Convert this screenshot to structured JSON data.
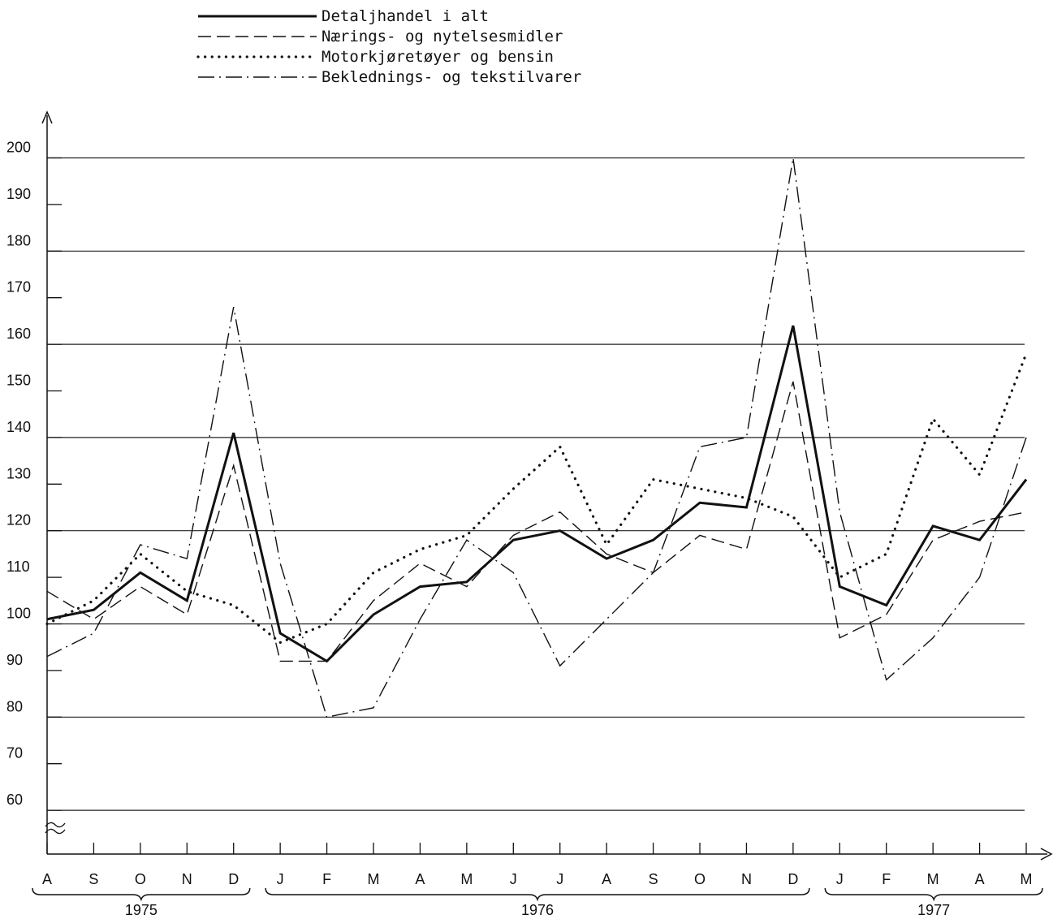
{
  "chart_data": {
    "type": "line",
    "title": "",
    "xlabel": "",
    "ylabel": "",
    "x": [
      "A",
      "S",
      "O",
      "N",
      "D",
      "J",
      "F",
      "M",
      "A",
      "M",
      "J",
      "J",
      "A",
      "S",
      "O",
      "N",
      "D",
      "J",
      "F",
      "M",
      "A",
      "M"
    ],
    "years": [
      {
        "label": "1975",
        "from": 0,
        "to": 4
      },
      {
        "label": "1976",
        "from": 5,
        "to": 16
      },
      {
        "label": "1977",
        "from": 17,
        "to": 21
      }
    ],
    "yticks": [
      60,
      70,
      80,
      90,
      100,
      110,
      120,
      130,
      140,
      150,
      160,
      170,
      180,
      190,
      200
    ],
    "gridlines": [
      60,
      80,
      100,
      120,
      140,
      160,
      180,
      200
    ],
    "ylim": [
      53,
      212
    ],
    "grid": true,
    "legend_position": "top",
    "series": [
      {
        "name": "Detaljhandel i alt",
        "style": "solid",
        "values": [
          101,
          103,
          111,
          105,
          141,
          98,
          92,
          102,
          108,
          109,
          118,
          120,
          114,
          118,
          126,
          125,
          164,
          108,
          104,
          121,
          118,
          131
        ]
      },
      {
        "name": "Nærings- og nytelsesmidler",
        "style": "dashed",
        "values": [
          107,
          101,
          108,
          102,
          134,
          92,
          92,
          105,
          113,
          108,
          119,
          124,
          115,
          111,
          119,
          116,
          152,
          97,
          102,
          118,
          122,
          124
        ]
      },
      {
        "name": "Motorkjøretøyer og bensin",
        "style": "dotted",
        "values": [
          100,
          105,
          115,
          107,
          104,
          96,
          100,
          111,
          116,
          119,
          129,
          138,
          117,
          131,
          129,
          127,
          123,
          110,
          115,
          144,
          132,
          158
        ]
      },
      {
        "name": "Beklednings- og tekstilvarer",
        "style": "dashdot",
        "values": [
          93,
          98,
          117,
          114,
          168,
          113,
          80,
          82,
          101,
          118,
          111,
          91,
          101,
          111,
          138,
          140,
          200,
          124,
          88,
          97,
          110,
          140
        ]
      }
    ]
  }
}
